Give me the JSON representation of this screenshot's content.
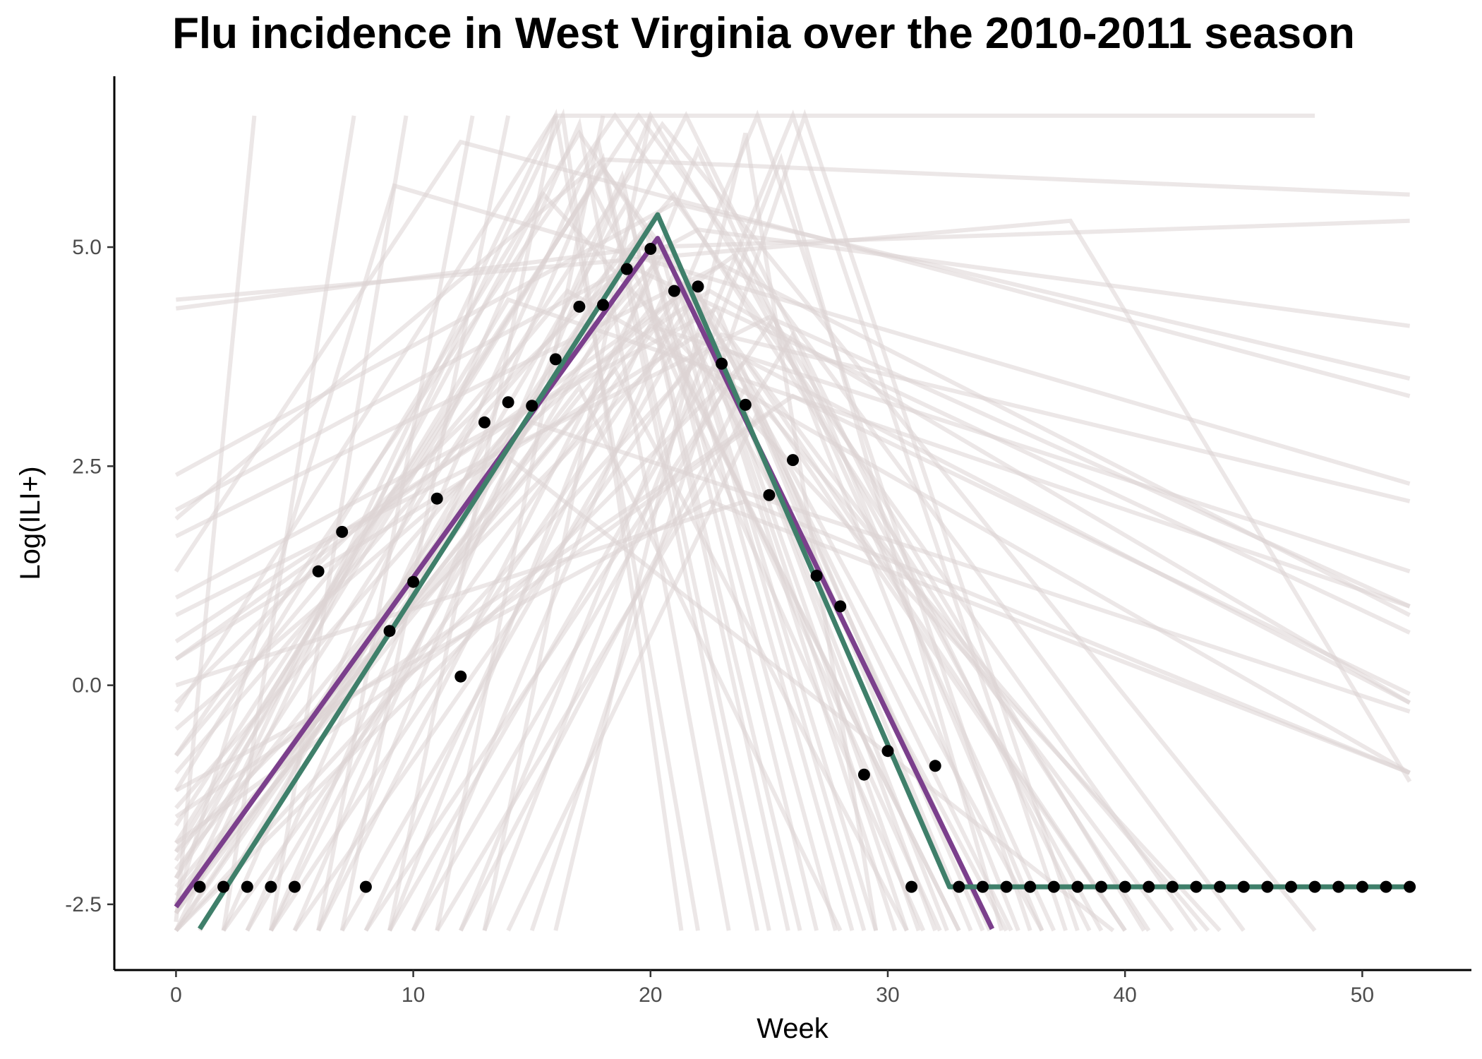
{
  "chart_data": {
    "type": "line",
    "title": "Flu incidence in West Virginia over the 2010-2011 season",
    "xlabel": "Week",
    "ylabel": "Log(ILI+)",
    "xlim": [
      -2.6,
      54.6
    ],
    "ylim": [
      -3.25,
      6.95
    ],
    "x_ticks": [
      0,
      10,
      20,
      30,
      40,
      50
    ],
    "x_tick_labels": [
      "0",
      "10",
      "20",
      "30",
      "40",
      "50"
    ],
    "y_ticks": [
      -2.5,
      0,
      2.5,
      5
    ],
    "y_tick_labels": [
      "-2.5",
      "0.0",
      "2.5",
      "5.0"
    ],
    "grid": false,
    "legend": "none",
    "observed": {
      "x": [
        1,
        2,
        3,
        4,
        5,
        6,
        7,
        8,
        9,
        10,
        11,
        12,
        13,
        14,
        15,
        16,
        17,
        18,
        19,
        20,
        21,
        22,
        23,
        24,
        25,
        26,
        27,
        28,
        29,
        30,
        31,
        32,
        33,
        34,
        35,
        36,
        37,
        38,
        39,
        40,
        41,
        42,
        43,
        44,
        45,
        46,
        47,
        48,
        49,
        50,
        51,
        52
      ],
      "y": [
        -2.3,
        -2.3,
        -2.3,
        -2.3,
        -2.3,
        1.3,
        1.75,
        -2.3,
        0.62,
        1.18,
        2.13,
        0.1,
        3.0,
        3.23,
        3.19,
        3.72,
        4.32,
        4.34,
        4.75,
        4.98,
        4.5,
        4.55,
        3.67,
        3.2,
        2.17,
        2.57,
        1.25,
        0.9,
        -1.02,
        -0.75,
        -2.3,
        -0.92,
        -2.3,
        -2.3,
        -2.3,
        -2.3,
        -2.3,
        -2.3,
        -2.3,
        -2.3,
        -2.3,
        -2.3,
        -2.3,
        -2.3,
        -2.3,
        -2.3,
        -2.3,
        -2.3,
        -2.3,
        -2.3,
        -2.3,
        -2.3
      ],
      "color": "#000000"
    },
    "series": [
      {
        "x": [
          0,
          20.3,
          34.4
        ],
        "y": [
          -2.53,
          5.1,
          -2.78
        ],
        "color": "#7b3f8c"
      },
      {
        "x": [
          1.0,
          20.3,
          32.6,
          52
        ],
        "y": [
          -2.78,
          5.37,
          -2.3,
          -2.3
        ],
        "color": "#3f7f6a"
      }
    ],
    "background_curves": {
      "color": "#dcd3d3",
      "lines": [
        {
          "x": [
            0,
            20,
            52
          ],
          "y": [
            4.3,
            5.0,
            5.3
          ]
        },
        {
          "x": [
            0,
            37.7,
            52
          ],
          "y": [
            4.4,
            5.3,
            -1.1
          ]
        },
        {
          "x": [
            0,
            9.2,
            52
          ],
          "y": [
            -2.5,
            5.7,
            2.3
          ]
        },
        {
          "x": [
            0,
            12,
            52
          ],
          "y": [
            1.3,
            6.2,
            3.3
          ]
        },
        {
          "x": [
            0,
            22,
            52
          ],
          "y": [
            2.0,
            5.2,
            4.1
          ]
        },
        {
          "x": [
            0,
            18,
            52
          ],
          "y": [
            1.9,
            6.0,
            5.6
          ]
        },
        {
          "x": [
            0,
            21,
            52
          ],
          "y": [
            2.4,
            5.5,
            3.5
          ]
        },
        {
          "x": [
            0,
            23,
            52
          ],
          "y": [
            1.7,
            4.8,
            0.8
          ]
        },
        {
          "x": [
            0,
            25,
            52
          ],
          "y": [
            0.8,
            4.2,
            0.9
          ]
        },
        {
          "x": [
            0,
            22,
            52
          ],
          "y": [
            0.3,
            4.0,
            -0.2
          ]
        },
        {
          "x": [
            0,
            24,
            52
          ],
          "y": [
            0.0,
            2.1,
            -1.0
          ]
        },
        {
          "x": [
            0,
            16,
            48
          ],
          "y": [
            -0.3,
            6.5,
            6.5
          ]
        },
        {
          "x": [
            0,
            3.3
          ],
          "y": [
            -2.7,
            6.5
          ]
        },
        {
          "x": [
            2,
            7.5
          ],
          "y": [
            -2.8,
            6.5
          ]
        },
        {
          "x": [
            4,
            9.7
          ],
          "y": [
            -2.8,
            6.5
          ]
        },
        {
          "x": [
            6,
            12.5
          ],
          "y": [
            -2.8,
            6.5
          ]
        },
        {
          "x": [
            7,
            14.0
          ],
          "y": [
            -2.8,
            6.5
          ]
        },
        {
          "x": [
            9,
            16.0
          ],
          "y": [
            -2.8,
            6.5
          ]
        },
        {
          "x": [
            11,
            18.0
          ],
          "y": [
            -2.8,
            6.5
          ]
        },
        {
          "x": [
            13,
            20.0
          ],
          "y": [
            -2.8,
            6.5
          ]
        },
        {
          "x": [
            0,
            16.3,
            21.3
          ],
          "y": [
            -2.8,
            6.5,
            -2.8
          ]
        },
        {
          "x": [
            0,
            16.0,
            22.0
          ],
          "y": [
            -2.6,
            6.5,
            -2.8
          ]
        },
        {
          "x": [
            2,
            17.0,
            23.3
          ],
          "y": [
            -2.8,
            6.4,
            -2.8
          ]
        },
        {
          "x": [
            3,
            17.8,
            24.5
          ],
          "y": [
            -2.8,
            6.2,
            -2.8
          ]
        },
        {
          "x": [
            4,
            18.0,
            25.0
          ],
          "y": [
            -2.8,
            6.0,
            -2.8
          ]
        },
        {
          "x": [
            5,
            18.8,
            25.8
          ],
          "y": [
            -2.8,
            5.8,
            -2.8
          ]
        },
        {
          "x": [
            1,
            19.0,
            26.3
          ],
          "y": [
            -2.8,
            5.5,
            -2.8
          ]
        },
        {
          "x": [
            0,
            19.8,
            27.0
          ],
          "y": [
            -2.8,
            5.2,
            -2.8
          ]
        },
        {
          "x": [
            3,
            20.0,
            27.8
          ],
          "y": [
            -2.8,
            5.0,
            -2.8
          ]
        },
        {
          "x": [
            6,
            20.5,
            28.5
          ],
          "y": [
            -2.8,
            4.9,
            -2.8
          ]
        },
        {
          "x": [
            8,
            21.0,
            29.0
          ],
          "y": [
            -2.8,
            4.7,
            -2.8
          ]
        },
        {
          "x": [
            2,
            21.3,
            29.5
          ],
          "y": [
            -2.8,
            4.5,
            -2.8
          ]
        },
        {
          "x": [
            4,
            21.8,
            30.3
          ],
          "y": [
            -2.8,
            4.4,
            -2.8
          ]
        },
        {
          "x": [
            7,
            22.0,
            30.8
          ],
          "y": [
            -2.8,
            4.3,
            -2.8
          ]
        },
        {
          "x": [
            5,
            22.5,
            31.3
          ],
          "y": [
            -2.8,
            4.0,
            -2.8
          ]
        },
        {
          "x": [
            9,
            23.0,
            32.0
          ],
          "y": [
            -2.8,
            3.8,
            -2.8
          ]
        },
        {
          "x": [
            10,
            23.4,
            32.5
          ],
          "y": [
            -2.8,
            3.5,
            -2.8
          ]
        },
        {
          "x": [
            12,
            24.0,
            33.5
          ],
          "y": [
            -2.8,
            3.4,
            -2.8
          ]
        },
        {
          "x": [
            14,
            24.5,
            34.3
          ],
          "y": [
            -2.8,
            3.1,
            -2.8
          ]
        },
        {
          "x": [
            8,
            25.2,
            35.5
          ],
          "y": [
            -2.8,
            4.2,
            -2.8
          ]
        },
        {
          "x": [
            11,
            26.0,
            36.5
          ],
          "y": [
            -2.8,
            4.0,
            -2.8
          ]
        },
        {
          "x": [
            0,
            17.0,
            40.0
          ],
          "y": [
            -1.2,
            6.3,
            -2.8
          ]
        },
        {
          "x": [
            0,
            18.5,
            43.0
          ],
          "y": [
            -0.8,
            6.5,
            -2.8
          ]
        },
        {
          "x": [
            0,
            19.5,
            45.0
          ],
          "y": [
            -1.6,
            6.5,
            -2.8
          ]
        },
        {
          "x": [
            0,
            20.5,
            48.0
          ],
          "y": [
            -2.2,
            6.4,
            -2.8
          ]
        },
        {
          "x": [
            6,
            20.0,
            40.8
          ],
          "y": [
            -2.8,
            6.5,
            -2.8
          ]
        },
        {
          "x": [
            4,
            21.5,
            38.5
          ],
          "y": [
            -2.8,
            6.5,
            -2.8
          ]
        },
        {
          "x": [
            9,
            22.0,
            37.0
          ],
          "y": [
            -2.8,
            6.1,
            -2.8
          ]
        },
        {
          "x": [
            10,
            24.5,
            36.0
          ],
          "y": [
            -2.8,
            6.5,
            -2.8
          ]
        },
        {
          "x": [
            12,
            26.0,
            37.5
          ],
          "y": [
            -2.8,
            6.5,
            -2.8
          ]
        },
        {
          "x": [
            15,
            26.5,
            38.0
          ],
          "y": [
            -2.8,
            6.5,
            -2.8
          ]
        },
        {
          "x": [
            13,
            25.5,
            34.8
          ],
          "y": [
            -2.8,
            6.0,
            -2.8
          ]
        },
        {
          "x": [
            16,
            24.0,
            29.5
          ],
          "y": [
            -2.8,
            6.3,
            -2.8
          ]
        },
        {
          "x": [
            0,
            14.0,
            52
          ],
          "y": [
            -1.9,
            4.4,
            0.9
          ]
        },
        {
          "x": [
            0,
            16.5,
            52
          ],
          "y": [
            -0.8,
            4.5,
            -1.0
          ]
        },
        {
          "x": [
            0,
            19.0,
            52
          ],
          "y": [
            -0.2,
            4.8,
            0.6
          ]
        },
        {
          "x": [
            0,
            22.5,
            52
          ],
          "y": [
            0.5,
            4.5,
            -0.2
          ]
        },
        {
          "x": [
            0,
            26.0,
            52
          ],
          "y": [
            -1.5,
            3.3,
            -0.1
          ]
        },
        {
          "x": [
            0,
            15.5,
            44.0
          ],
          "y": [
            -2.2,
            5.6,
            -2.8
          ]
        },
        {
          "x": [
            0,
            18.0,
            42.0
          ],
          "y": [
            -1.8,
            5.9,
            -2.8
          ]
        },
        {
          "x": [
            0,
            21.0,
            41.0
          ],
          "y": [
            -1.0,
            5.6,
            -2.8
          ]
        },
        {
          "x": [
            0,
            23.5,
            39.0
          ],
          "y": [
            0.3,
            4.9,
            -2.8
          ]
        },
        {
          "x": [
            0,
            17.5,
            33.0
          ],
          "y": [
            -2.0,
            5.7,
            -2.8
          ]
        },
        {
          "x": [
            0,
            19.5,
            35.0
          ],
          "y": [
            -2.6,
            5.1,
            -2.8
          ]
        },
        {
          "x": [
            0,
            20.8,
            36.5
          ],
          "y": [
            -1.4,
            5.0,
            -2.8
          ]
        },
        {
          "x": [
            0,
            21.8,
            35.2
          ],
          "y": [
            -0.5,
            4.6,
            -2.8
          ]
        },
        {
          "x": [
            0,
            22.8,
            34.0
          ],
          "y": [
            1.0,
            4.3,
            -2.8
          ]
        },
        {
          "x": [
            0,
            24.0,
            40.0
          ],
          "y": [
            -2.8,
            3.7,
            -2.8
          ]
        },
        {
          "x": [
            0,
            25.0,
            43.5
          ],
          "y": [
            -1.8,
            3.1,
            -2.8
          ]
        },
        {
          "x": [
            0,
            20.0,
            33.0
          ],
          "y": [
            -2.4,
            4.3,
            -2.8
          ]
        },
        {
          "x": [
            0,
            21.0,
            32.2
          ],
          "y": [
            -1.9,
            3.9,
            -2.8
          ]
        },
        {
          "x": [
            0,
            18.5,
            30.8
          ],
          "y": [
            -2.3,
            3.6,
            -2.8
          ]
        },
        {
          "x": [
            0,
            17.0,
            28.0
          ],
          "y": [
            -2.6,
            3.4,
            -2.8
          ]
        },
        {
          "x": [
            0,
            19.5,
            31.5
          ],
          "y": [
            -2.1,
            4.5,
            -2.8
          ]
        },
        {
          "x": [
            0,
            20.0,
            52
          ],
          "y": [
            -2.5,
            4.1,
            1.3
          ]
        },
        {
          "x": [
            0,
            23.0,
            52
          ],
          "y": [
            -2.8,
            4.0,
            2.1
          ]
        },
        {
          "x": [
            0,
            15.0,
            52
          ],
          "y": [
            -2.5,
            3.0,
            -0.3
          ]
        },
        {
          "x": [
            0,
            14.0,
            39.5
          ],
          "y": [
            -2.8,
            2.6,
            -2.8
          ]
        },
        {
          "x": [
            0,
            22.5,
            52
          ],
          "y": [
            -1.2,
            2.1,
            -1.0
          ]
        }
      ]
    }
  }
}
